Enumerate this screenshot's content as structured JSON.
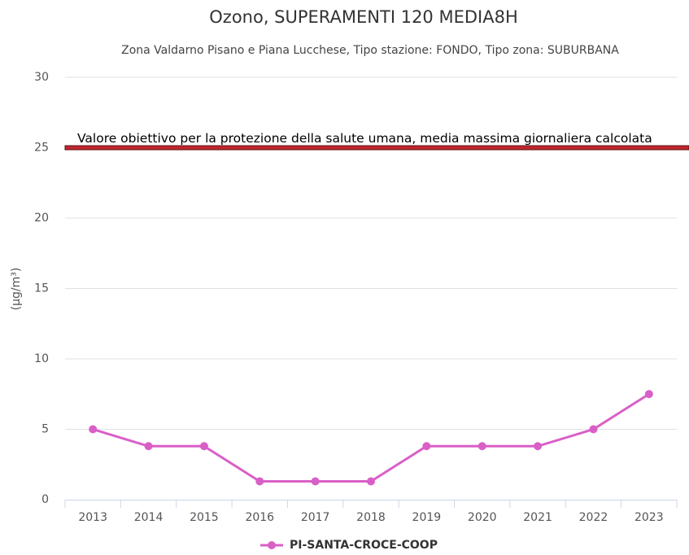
{
  "chart_data": {
    "type": "line",
    "title": "Ozono, SUPERAMENTI 120 MEDIA8H",
    "subtitle": "Zona Valdarno Pisano e Piana Lucchese, Tipo stazione: FONDO, Tipo zona: SUBURBANA",
    "y_label": "(µg/m³)",
    "categories": [
      "2013",
      "2014",
      "2015",
      "2016",
      "2017",
      "2018",
      "2019",
      "2020",
      "2021",
      "2022",
      "2023"
    ],
    "series": [
      {
        "name": "PI-SANTA-CROCE-COOP",
        "color": "#d95fc7",
        "values": [
          5,
          3.8,
          3.8,
          1.3,
          1.3,
          1.3,
          3.8,
          3.8,
          3.8,
          5,
          7.5
        ]
      }
    ],
    "ylim": [
      0,
      30
    ],
    "yticks": [
      0,
      5,
      10,
      15,
      20,
      25,
      30
    ],
    "grid": true,
    "plot_lines": [
      {
        "value": 25,
        "label": "Valore obiettivo per la protezione della salute umana, media massima giornaliera calcolata",
        "color": "#c0272d"
      }
    ],
    "legend": "bottom"
  }
}
